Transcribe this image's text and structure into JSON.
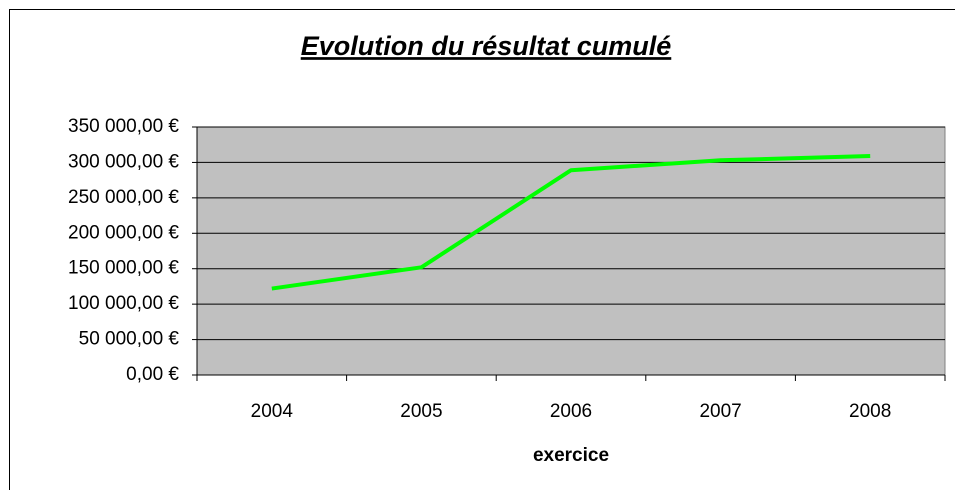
{
  "chart_data": {
    "type": "line",
    "title": "Evolution du résultat cumulé",
    "x_label": "exercice",
    "categories": [
      "2004",
      "2005",
      "2006",
      "2007",
      "2008"
    ],
    "series": [
      {
        "name": "résultat cumulé",
        "color": "#00ff00",
        "values": [
          122000,
          152000,
          289000,
          303000,
          309000
        ]
      }
    ],
    "ylim": [
      0,
      350000
    ],
    "yticks": [
      {
        "value": 0,
        "label": "0,00 €"
      },
      {
        "value": 50000,
        "label": "50 000,00 €"
      },
      {
        "value": 100000,
        "label": "100 000,00 €"
      },
      {
        "value": 150000,
        "label": "150 000,00 €"
      },
      {
        "value": 200000,
        "label": "200 000,00 €"
      },
      {
        "value": 250000,
        "label": "250 000,00 €"
      },
      {
        "value": 300000,
        "label": "300 000,00 €"
      },
      {
        "value": 350000,
        "label": "350 000,00 €"
      }
    ],
    "grid": true,
    "plot_background": "#c0c0c0"
  }
}
